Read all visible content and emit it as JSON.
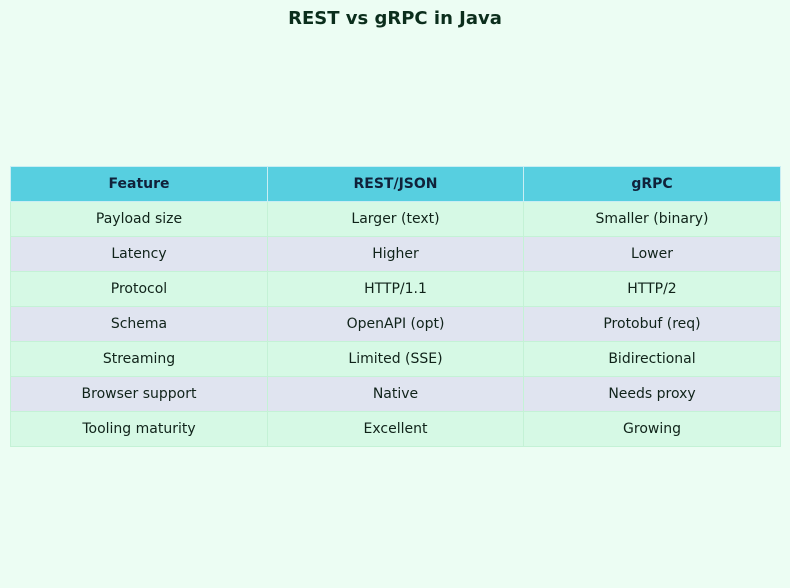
{
  "title": "REST vs gRPC in Java",
  "colors": {
    "background": "#ecfdf3",
    "header_fill": "#57cfe0",
    "row_fill_a": "#d6f9e5",
    "row_fill_b": "#e0e4f0"
  },
  "chart_data": {
    "type": "table",
    "title": "REST vs gRPC in Java",
    "columns": [
      "Feature",
      "REST/JSON",
      "gRPC"
    ],
    "rows": [
      [
        "Payload size",
        "Larger (text)",
        "Smaller (binary)"
      ],
      [
        "Latency",
        "Higher",
        "Lower"
      ],
      [
        "Protocol",
        "HTTP/1.1",
        "HTTP/2"
      ],
      [
        "Schema",
        "OpenAPI (opt)",
        "Protobuf (req)"
      ],
      [
        "Streaming",
        "Limited (SSE)",
        "Bidirectional"
      ],
      [
        "Browser support",
        "Native",
        "Needs proxy"
      ],
      [
        "Tooling maturity",
        "Excellent",
        "Growing"
      ]
    ]
  }
}
